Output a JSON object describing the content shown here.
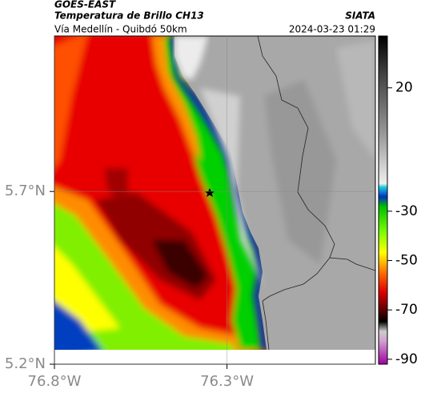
{
  "header": {
    "title": "GOES-EAST",
    "subtitle": "Temperatura de Brillo CH13",
    "source": "SIATA",
    "region": "Vía Medellín - Quibdó 50km",
    "timestamp": "2024-03-23 01:29"
  },
  "map": {
    "type": "map",
    "xlim": [
      -76.8,
      -75.87
    ],
    "ylim": [
      5.2,
      6.15
    ],
    "xticks": [
      {
        "value": -76.8,
        "label": "76.8°W"
      },
      {
        "value": -76.3,
        "label": "76.3°W"
      }
    ],
    "yticks": [
      {
        "value": 5.2,
        "label": "5.2°N"
      },
      {
        "value": 5.7,
        "label": "5.7°N"
      }
    ],
    "grid": true,
    "colorbar": {
      "lim": [
        -92,
        41
      ],
      "ticks": [
        20,
        -30,
        -50,
        -70,
        -90
      ]
    }
  }
}
